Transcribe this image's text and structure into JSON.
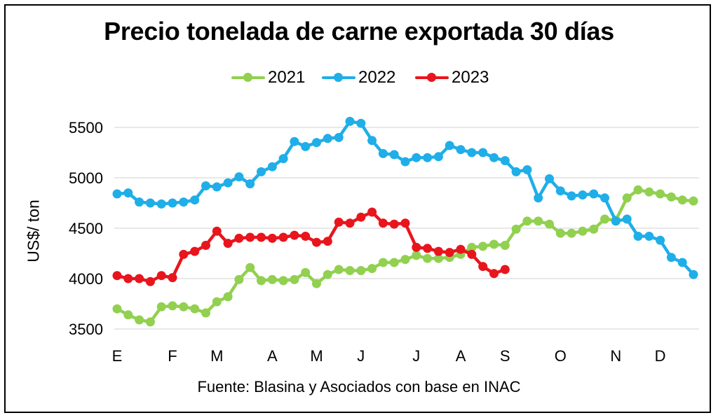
{
  "chart_data": {
    "type": "line",
    "title": "Precio tonelada de carne exportada 30 días",
    "ylabel": "US$/ ton",
    "xlabel": "",
    "source": "Fuente: Blasina y Asociados con base en INAC",
    "ylim": [
      3500,
      5500
    ],
    "yticks": [
      3500,
      4000,
      4500,
      5000,
      5500
    ],
    "grid": "horizontal",
    "legend_position": "top",
    "x_week_range": [
      1,
      53
    ],
    "month_ticks": [
      {
        "label": "E",
        "week": 1
      },
      {
        "label": "F",
        "week": 6
      },
      {
        "label": "M",
        "week": 10
      },
      {
        "label": "A",
        "week": 15
      },
      {
        "label": "M",
        "week": 19
      },
      {
        "label": "J",
        "week": 23
      },
      {
        "label": "J",
        "week": 28
      },
      {
        "label": "A",
        "week": 32
      },
      {
        "label": "S",
        "week": 36
      },
      {
        "label": "O",
        "week": 41
      },
      {
        "label": "N",
        "week": 46
      },
      {
        "label": "D",
        "week": 50
      }
    ],
    "series": [
      {
        "name": "2021",
        "color": "#92D050",
        "values": [
          3700,
          3640,
          3590,
          3570,
          3720,
          3730,
          3720,
          3700,
          3660,
          3770,
          3820,
          3990,
          4110,
          3980,
          3990,
          3980,
          3990,
          4060,
          3950,
          4040,
          4090,
          4080,
          4080,
          4100,
          4160,
          4160,
          4190,
          4230,
          4200,
          4200,
          4210,
          4240,
          4310,
          4320,
          4340,
          4330,
          4490,
          4570,
          4570,
          4540,
          4450,
          4450,
          4470,
          4490,
          4590,
          4580,
          4800,
          4880,
          4860,
          4840,
          4810,
          4780,
          4770
        ]
      },
      {
        "name": "2022",
        "color": "#1FAEE8",
        "values": [
          4840,
          4850,
          4760,
          4750,
          4740,
          4750,
          4760,
          4780,
          4920,
          4910,
          4950,
          5010,
          4940,
          5060,
          5110,
          5190,
          5360,
          5310,
          5350,
          5390,
          5400,
          5560,
          5540,
          5370,
          5240,
          5230,
          5160,
          5200,
          5200,
          5210,
          5320,
          5280,
          5250,
          5250,
          5200,
          5170,
          5060,
          5080,
          4800,
          4990,
          4870,
          4820,
          4830,
          4840,
          4800,
          4570,
          4590,
          4420,
          4420,
          4380,
          4210,
          4160,
          4040
        ]
      },
      {
        "name": "2023",
        "color": "#E8151D",
        "values": [
          4030,
          4000,
          4000,
          3970,
          4030,
          4010,
          4240,
          4270,
          4330,
          4470,
          4350,
          4400,
          4410,
          4410,
          4400,
          4410,
          4430,
          4420,
          4360,
          4370,
          4560,
          4550,
          4610,
          4660,
          4550,
          4540,
          4550,
          4310,
          4300,
          4270,
          4260,
          4290,
          4240,
          4120,
          4050,
          4090
        ]
      }
    ]
  }
}
